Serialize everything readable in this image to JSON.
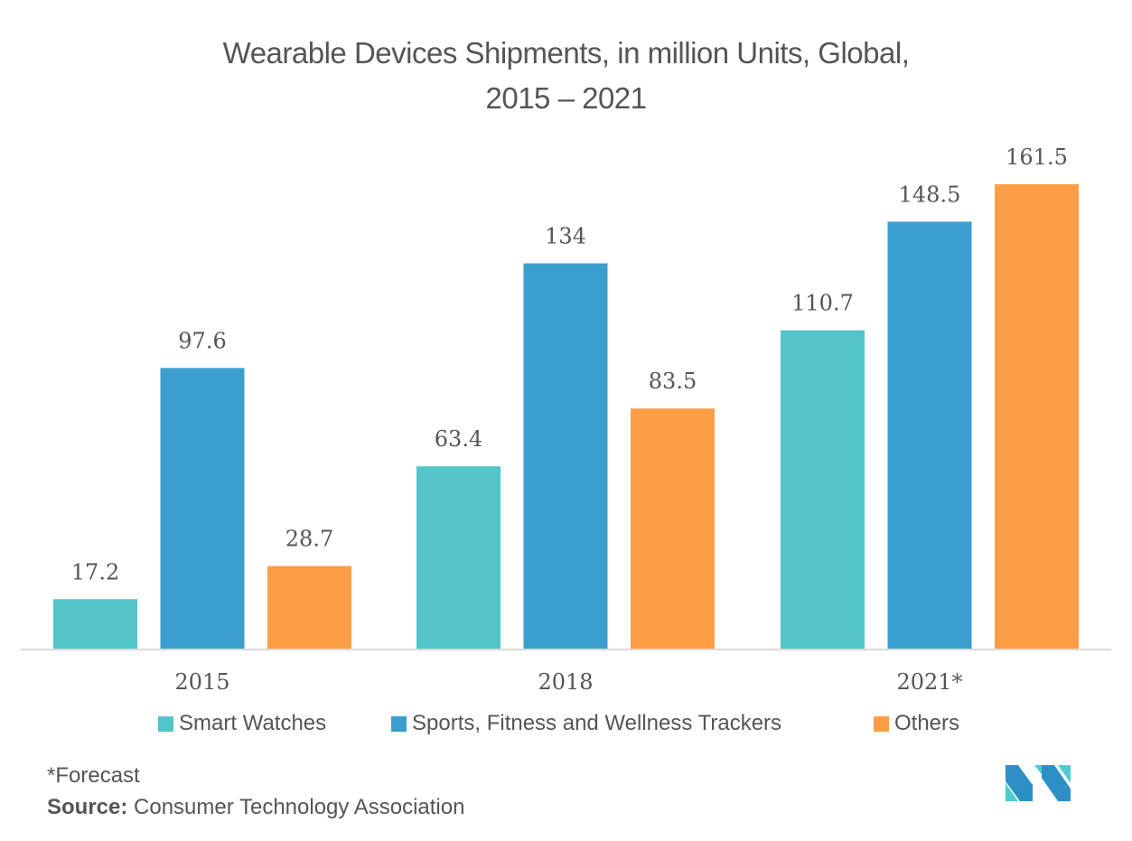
{
  "chart_data": {
    "type": "bar",
    "title": "Wearable Devices Shipments, in million Units, Global,",
    "subtitle": "2015 – 2021",
    "categories": [
      "2015",
      "2018",
      "2021*"
    ],
    "series": [
      {
        "name": "Smart Watches",
        "color": "#52C4CA",
        "values": [
          17.2,
          63.4,
          110.7
        ],
        "labels": [
          "17.2",
          "63.4",
          "110.7"
        ]
      },
      {
        "name": "Sports, Fitness and Wellness Trackers",
        "color": "#3C9ECE",
        "values": [
          97.6,
          134,
          148.5
        ],
        "labels": [
          "97.6",
          "134",
          "148.5"
        ]
      },
      {
        "name": "Others",
        "color": "#FD9E45",
        "values": [
          28.7,
          83.5,
          161.5
        ],
        "labels": [
          "28.7",
          "83.5",
          "161.5"
        ]
      }
    ],
    "xlabel": "",
    "ylabel": "",
    "ylim": [
      0,
      161.5
    ],
    "grid": false,
    "y_axis_visible": false,
    "legend_position": "bottom",
    "baseline_color": "#D9D9D9"
  },
  "footer": {
    "note": "*Forecast",
    "source_label": "Source:",
    "source_text": " Consumer Technology Association"
  },
  "logo": {
    "icon": "mordor-intelligence-logo",
    "colors": [
      "#2E8FC6",
      "#4DCCD0"
    ]
  }
}
